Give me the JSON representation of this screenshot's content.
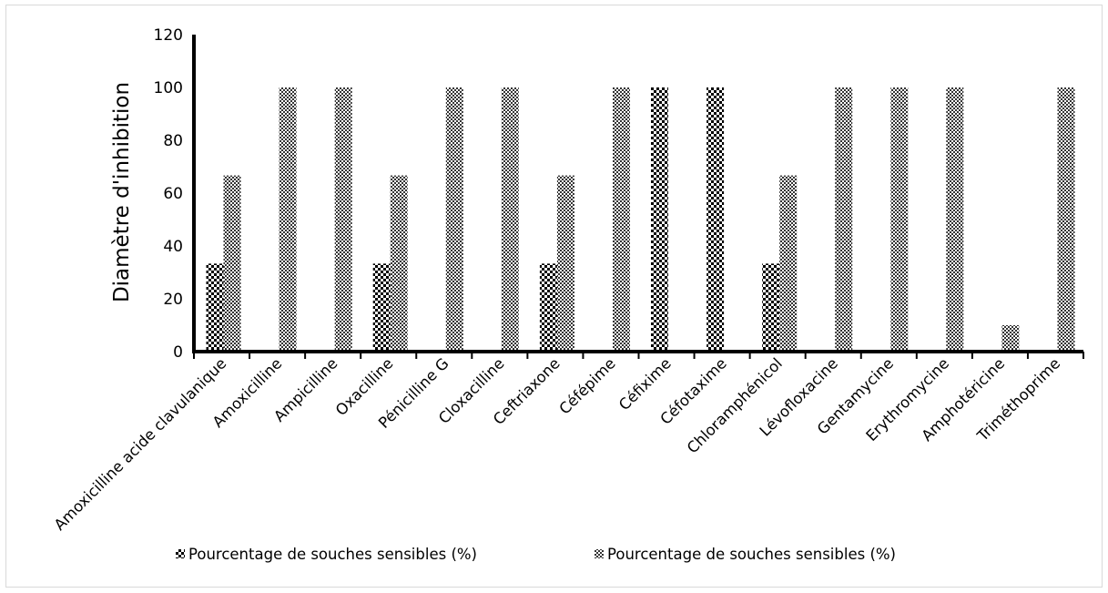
{
  "chart_data": {
    "type": "bar",
    "title": "",
    "xlabel": "",
    "ylabel": "Diamètre d'inhibition",
    "ylim": [
      0,
      120
    ],
    "yticks": [
      0,
      20,
      40,
      60,
      80,
      100,
      120
    ],
    "grid": false,
    "legend_position": "bottom",
    "categories": [
      "Amoxicilline acide clavulanique",
      "Amoxicilline",
      "Ampicilline",
      "Oxacilline",
      "Pénicilline G",
      "Cloxacilline",
      "Ceftriaxone",
      "Céfépime",
      "Céfixime",
      "Céfotaxime",
      "Chloramphénicol",
      "Lévofloxacine",
      "Gentamycine",
      "Erythromycine",
      "Amphotéricine",
      "Triméthoprime"
    ],
    "series": [
      {
        "name": "Pourcentage de souches sensibles (%)",
        "pattern": "coarse-checker",
        "values": [
          33.3,
          0,
          0,
          33.3,
          0,
          0,
          33.3,
          0,
          100,
          100,
          33.3,
          0,
          0,
          0,
          0,
          0
        ]
      },
      {
        "name": "Pourcentage de souches sensibles (%)",
        "pattern": "fine-checker",
        "values": [
          66.7,
          100,
          100,
          66.7,
          100,
          100,
          66.7,
          100,
          0,
          0,
          66.7,
          100,
          100,
          100,
          10,
          100
        ]
      }
    ]
  },
  "colors": {
    "axis": "#000000",
    "bar_dark": "#000000",
    "bar_light": "#ffffff",
    "frame": "#d9d9d9"
  }
}
